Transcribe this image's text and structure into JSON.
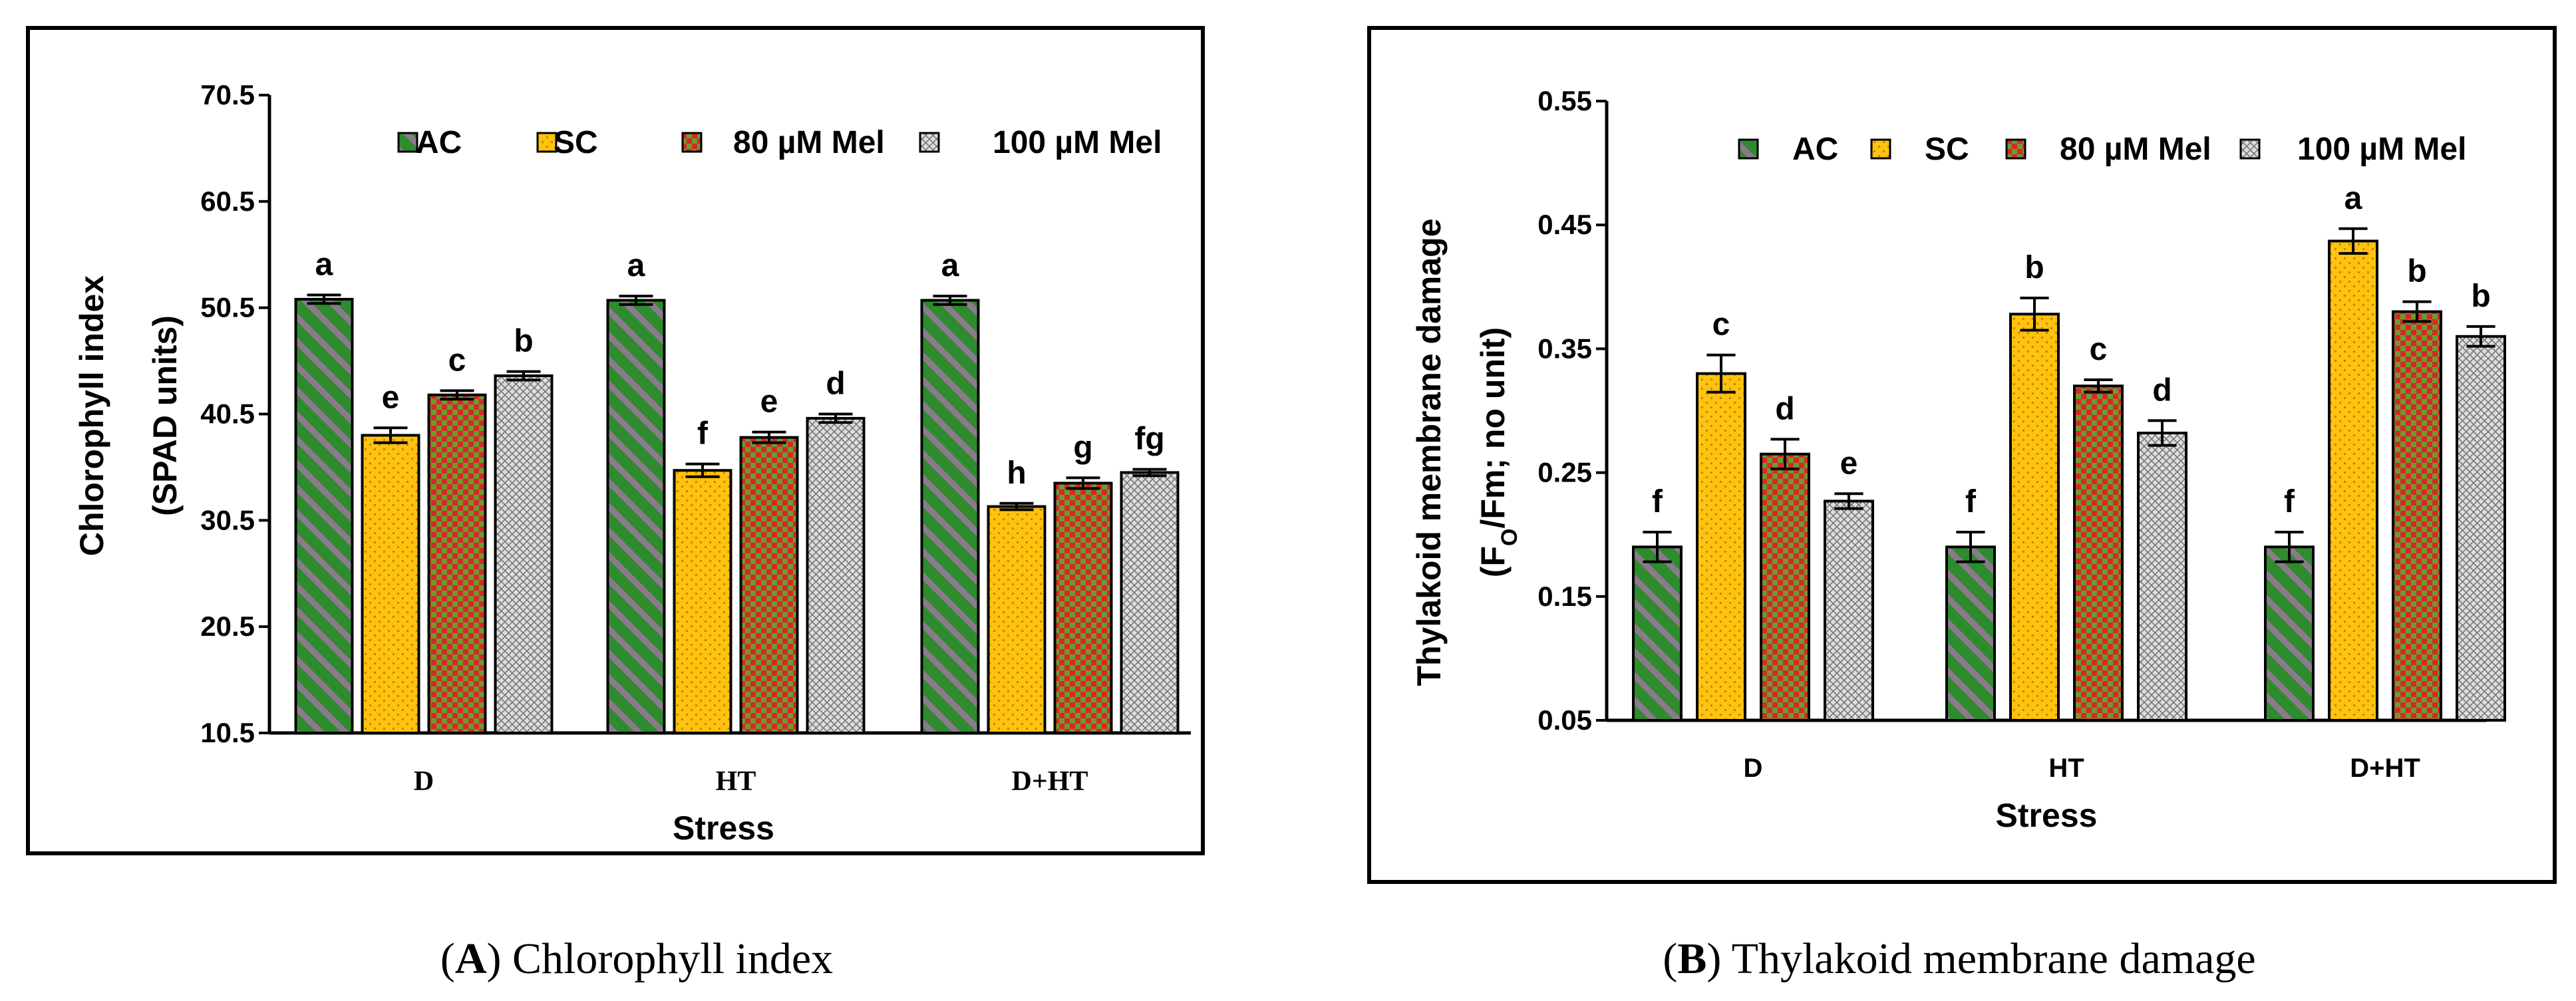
{
  "colors": {
    "ac_base": "#2E8B2E",
    "ac_stripe": "#8C7A8C",
    "sc_base": "#FFC20E",
    "sc_dot": "#B8860B",
    "mel80_a": "#D62828",
    "mel80_b": "#6E9A2E",
    "mel100_base": "#DDDDDD",
    "mel100_line": "#777777"
  },
  "series_keys": [
    "ac",
    "sc",
    "mel80",
    "mel100"
  ],
  "chart_data": [
    {
      "type": "bar",
      "panel_label": "A",
      "caption": "Chlorophyll index",
      "xlabel": "Stress",
      "ylabel_lines": [
        "Chlorophyll index",
        "(SPAD units)"
      ],
      "categories": [
        "D",
        "HT",
        "D+HT"
      ],
      "ylim": [
        10.5,
        70.5
      ],
      "yticks": [
        "10.5",
        "20.5",
        "30.5",
        "40.5",
        "50.5",
        "60.5",
        "70.5"
      ],
      "legend": [
        "AC",
        "SC",
        "80 µM Mel",
        "100 µM Mel"
      ],
      "series": [
        {
          "name": "AC",
          "values": [
            51.3,
            51.2,
            51.2
          ],
          "err": [
            0.4,
            0.4,
            0.4
          ],
          "letters": [
            "a",
            "a",
            "a"
          ]
        },
        {
          "name": "SC",
          "values": [
            38.5,
            35.2,
            31.8
          ],
          "err": [
            0.7,
            0.6,
            0.3
          ],
          "letters": [
            "e",
            "f",
            "h"
          ]
        },
        {
          "name": "80 µM Mel",
          "values": [
            42.3,
            38.3,
            34.0
          ],
          "err": [
            0.4,
            0.5,
            0.5
          ],
          "letters": [
            "c",
            "e",
            "g"
          ]
        },
        {
          "name": "100 µM Mel",
          "values": [
            44.1,
            40.1,
            35.0
          ],
          "err": [
            0.4,
            0.4,
            0.3
          ],
          "letters": [
            "b",
            "d",
            "fg"
          ]
        }
      ]
    },
    {
      "type": "bar",
      "panel_label": "B",
      "caption": "Thylakoid membrane damage",
      "xlabel": "Stress",
      "ylabel_lines": [
        "Thylakoid membrane damage",
        "(F|O|/Fm; no unit)"
      ],
      "categories": [
        "D",
        "HT",
        "D+HT"
      ],
      "ylim": [
        0.05,
        0.55
      ],
      "yticks": [
        "0.05",
        "0.15",
        "0.25",
        "0.35",
        "0.45",
        "0.55"
      ],
      "legend": [
        "AC",
        "SC",
        "80 µM Mel",
        "100 µM Mel"
      ],
      "series": [
        {
          "name": "AC",
          "values": [
            0.19,
            0.19,
            0.19
          ],
          "err": [
            0.012,
            0.012,
            0.012
          ],
          "letters": [
            "f",
            "f",
            "f"
          ]
        },
        {
          "name": "SC",
          "values": [
            0.33,
            0.378,
            0.437
          ],
          "err": [
            0.015,
            0.013,
            0.01
          ],
          "letters": [
            "c",
            "b",
            "a"
          ]
        },
        {
          "name": "80 µM Mel",
          "values": [
            0.265,
            0.32,
            0.38
          ],
          "err": [
            0.012,
            0.005,
            0.008
          ],
          "letters": [
            "d",
            "c",
            "b"
          ]
        },
        {
          "name": "100 µM Mel",
          "values": [
            0.227,
            0.282,
            0.36
          ],
          "err": [
            0.006,
            0.01,
            0.008
          ],
          "letters": [
            "e",
            "d",
            "b"
          ]
        }
      ]
    }
  ]
}
